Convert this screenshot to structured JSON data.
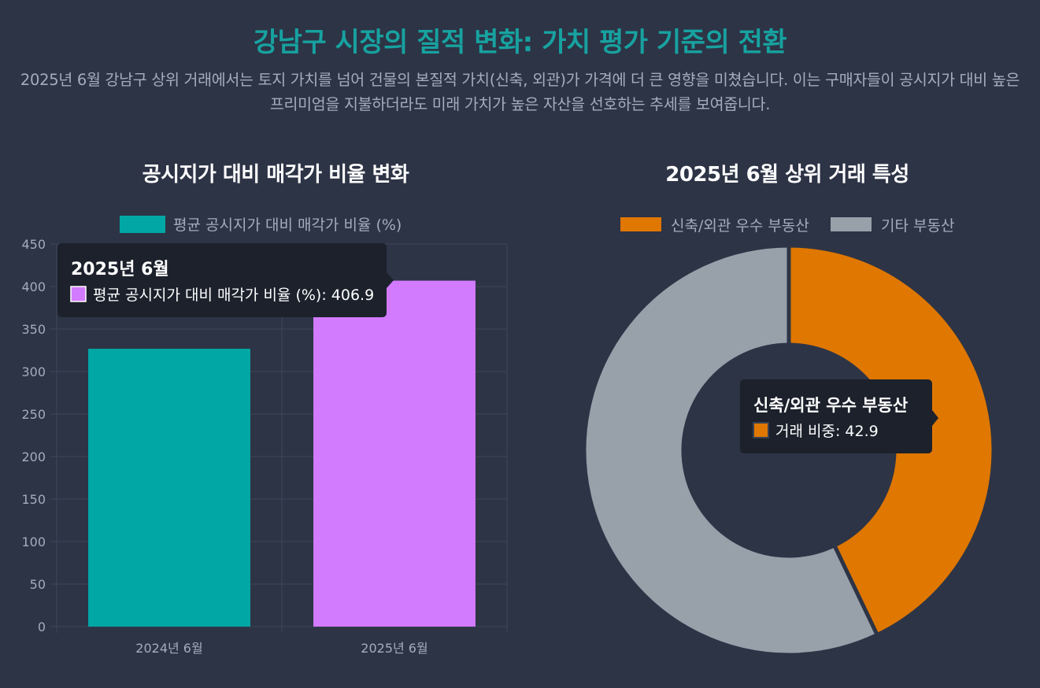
{
  "page": {
    "title": "강남구 시장의 질적 변화: 가치 평가 기준의 전환",
    "description": "2025년 6월 강남구 상위 거래에서는 토지 가치를 넘어 건물의 본질적 가치(신축, 외관)가 가격에 더 큰 영향을 미쳤습니다. 이는 구매자들이 공시지가 대비 높은 프리미엄을 지불하더라도 미래 가치가 높은 자산을 선호하는 추세를 보여줍니다."
  },
  "colors": {
    "accent": "#17a2a0",
    "bar_2024": "#00a7a5",
    "bar_2025": "#d27bff",
    "donut_new": "#df7700",
    "donut_other": "#98a0aa",
    "tooltip_bg": "#1c212c"
  },
  "chart_data": [
    {
      "type": "bar",
      "title": "공시지가 대비 매각가 비율 변화",
      "categories": [
        "2024년 6월",
        "2025년 6월"
      ],
      "series": [
        {
          "name": "평균 공시지가 대비 매각가 비율 (%)",
          "values": [
            326.8,
            406.9
          ]
        }
      ],
      "ylim": [
        0,
        450
      ],
      "yticks": [
        0,
        50,
        100,
        150,
        200,
        250,
        300,
        350,
        400,
        450
      ],
      "grid": true,
      "legend": "top",
      "tooltip": {
        "title": "2025년 6월",
        "label": "평균 공시지가 대비 매각가 비율 (%)",
        "value": "406.9"
      }
    },
    {
      "type": "pie",
      "style": "donut",
      "title": "2025년 6월 상위 거래 특성",
      "labels": [
        "신축/외관 우수 부동산",
        "기타 부동산"
      ],
      "values": [
        42.9,
        57.1
      ],
      "legend": "top",
      "tooltip": {
        "title": "신축/외관 우수 부동산",
        "label": "거래 비중",
        "value": "42.9"
      }
    }
  ]
}
